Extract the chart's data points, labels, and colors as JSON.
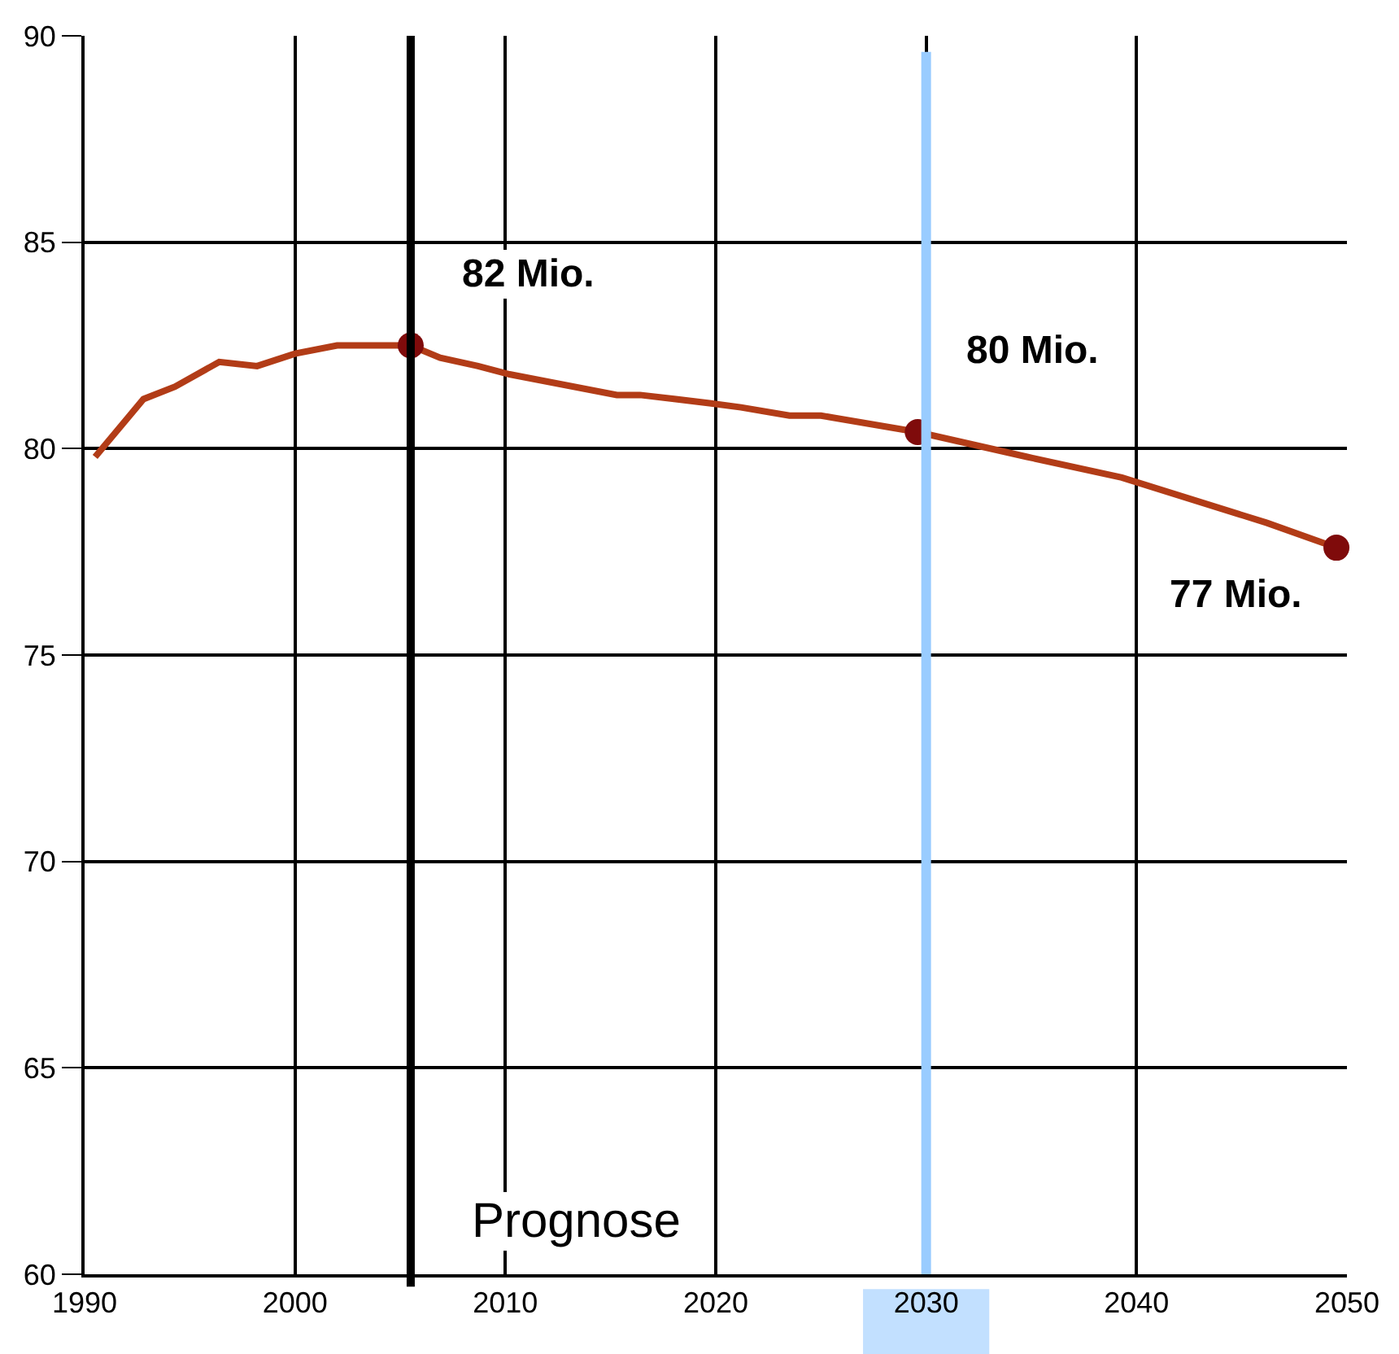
{
  "chart_data": {
    "type": "line",
    "xlim": [
      1990,
      2050
    ],
    "ylim": [
      60,
      90
    ],
    "xticks": [
      1990,
      2000,
      2010,
      2020,
      2030,
      2040,
      2050
    ],
    "yticks": [
      60,
      65,
      70,
      75,
      80,
      85,
      90
    ],
    "grid": true,
    "line_style": "solid",
    "marker": "none",
    "series": [
      {
        "color": "#b23c17",
        "x": [
          1990.5,
          1992.8,
          1994.3,
          1996.4,
          1998.2,
          2000,
          2002,
          2004.9,
          2005.5,
          2006.9,
          2008.7,
          2010.2,
          2015.3,
          2016.4,
          2018.1,
          2019.7,
          2021.2,
          2023.5,
          2025,
          2029.6,
          2034.8,
          2039.3,
          2046.2,
          2049.5
        ],
        "values": [
          79.8,
          81.2,
          81.5,
          82.1,
          82.0,
          82.3,
          82.5,
          82.5,
          82.5,
          82.2,
          82.0,
          81.8,
          81.3,
          81.3,
          81.2,
          81.1,
          81.0,
          80.8,
          80.8,
          80.4,
          79.8,
          79.3,
          78.2,
          77.6
        ]
      },
      {
        "type": "scatter",
        "color": "#7f0b0b",
        "marker": "circle",
        "x": [
          2005.5,
          2029.6,
          2049.5
        ],
        "values": [
          82.5,
          80.4,
          77.6
        ]
      }
    ],
    "ref_lines": [
      {
        "axis": "x",
        "value": 2005.5,
        "label": "Prognose",
        "color": "#000000"
      },
      {
        "axis": "x",
        "value": 2030,
        "color": "#99ccff"
      }
    ],
    "annotations": [
      {
        "text": "82 Mio.",
        "x": 2005.5,
        "y": 82.5
      },
      {
        "text": "80 Mio.",
        "x": 2029.6,
        "y": 80.4
      },
      {
        "text": "77 Mio.",
        "x": 2049.5,
        "y": 77.6
      }
    ]
  }
}
